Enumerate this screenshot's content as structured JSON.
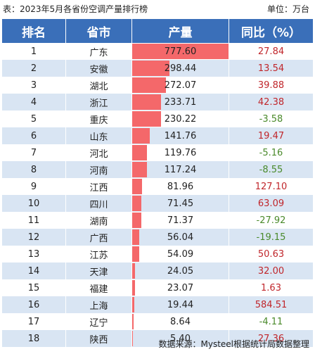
{
  "caption": {
    "title": "表：2023年5月各省份空调产量排行榜",
    "unit": "单位：万台"
  },
  "headers": [
    "排名",
    "省市",
    "产量",
    "同比（%）"
  ],
  "bar_max": 777.6,
  "rows": [
    {
      "rank": "1",
      "province": "广东",
      "output": 777.6,
      "output_label": "777.60",
      "yoy": "27.84",
      "dir": "pos"
    },
    {
      "rank": "2",
      "province": "安徽",
      "output": 298.44,
      "output_label": "298.44",
      "yoy": "13.54",
      "dir": "pos"
    },
    {
      "rank": "3",
      "province": "湖北",
      "output": 272.07,
      "output_label": "272.07",
      "yoy": "39.88",
      "dir": "pos"
    },
    {
      "rank": "4",
      "province": "浙江",
      "output": 233.71,
      "output_label": "233.71",
      "yoy": "42.38",
      "dir": "pos"
    },
    {
      "rank": "5",
      "province": "重庆",
      "output": 230.22,
      "output_label": "230.22",
      "yoy": "-3.58",
      "dir": "neg"
    },
    {
      "rank": "6",
      "province": "山东",
      "output": 141.76,
      "output_label": "141.76",
      "yoy": "19.47",
      "dir": "pos"
    },
    {
      "rank": "7",
      "province": "河北",
      "output": 119.76,
      "output_label": "119.76",
      "yoy": "-5.16",
      "dir": "neg"
    },
    {
      "rank": "8",
      "province": "河南",
      "output": 117.24,
      "output_label": "117.24",
      "yoy": "-8.55",
      "dir": "neg"
    },
    {
      "rank": "9",
      "province": "江西",
      "output": 81.96,
      "output_label": "81.96",
      "yoy": "127.10",
      "dir": "pos"
    },
    {
      "rank": "10",
      "province": "四川",
      "output": 71.45,
      "output_label": "71.45",
      "yoy": "63.09",
      "dir": "pos"
    },
    {
      "rank": "11",
      "province": "湖南",
      "output": 71.37,
      "output_label": "71.37",
      "yoy": "-27.92",
      "dir": "neg"
    },
    {
      "rank": "12",
      "province": "广西",
      "output": 56.04,
      "output_label": "56.04",
      "yoy": "-19.15",
      "dir": "neg"
    },
    {
      "rank": "13",
      "province": "江苏",
      "output": 54.09,
      "output_label": "54.09",
      "yoy": "50.63",
      "dir": "pos"
    },
    {
      "rank": "14",
      "province": "天津",
      "output": 24.05,
      "output_label": "24.05",
      "yoy": "32.00",
      "dir": "pos"
    },
    {
      "rank": "15",
      "province": "福建",
      "output": 23.07,
      "output_label": "23.07",
      "yoy": "1.63",
      "dir": "pos"
    },
    {
      "rank": "16",
      "province": "上海",
      "output": 19.44,
      "output_label": "19.44",
      "yoy": "584.51",
      "dir": "pos"
    },
    {
      "rank": "17",
      "province": "辽宁",
      "output": 8.64,
      "output_label": "8.64",
      "yoy": "-4.11",
      "dir": "neg"
    },
    {
      "rank": "18",
      "province": "陕西",
      "output": 5.4,
      "output_label": "5.40",
      "yoy": "27.36",
      "dir": "pos"
    }
  ],
  "colors": {
    "header_bg": "#3a6fb9",
    "alt_row": "#d9e5f3",
    "bar": "#f4686a",
    "positive": "#c0262b",
    "negative": "#4a8a2b"
  },
  "source": "数据来源：Mysteel根据统计局数据整理"
}
